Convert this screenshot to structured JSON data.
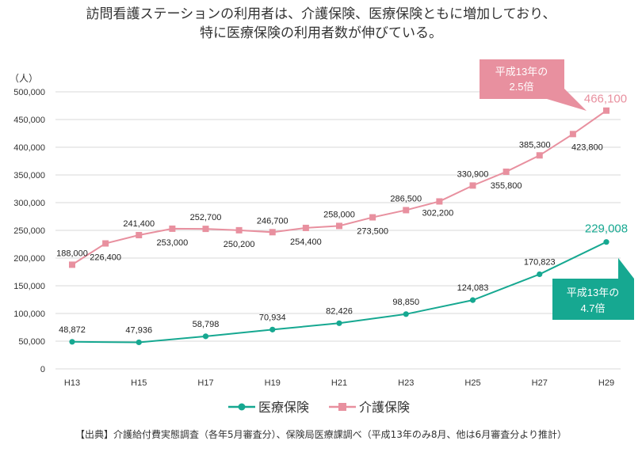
{
  "title": {
    "line1": "訪問看護ステーションの利用者は、介護保険、医療保険ともに増加しており、",
    "line2": "特に医療保険の利用者数が伸びている。"
  },
  "source": "【出典】介護給付費実態調査（各年5月審査分）、保険局医療課調べ（平成13年のみ8月、他は6月審査分より推計）",
  "chart_data": {
    "type": "line",
    "ylabel": "（人）",
    "ylim": [
      0,
      500000
    ],
    "y_ticks": [
      "0",
      "50,000",
      "100,000",
      "150,000",
      "200,000",
      "250,000",
      "300,000",
      "350,000",
      "400,000",
      "450,000",
      "500,000"
    ],
    "y_tick_values": [
      0,
      50000,
      100000,
      150000,
      200000,
      250000,
      300000,
      350000,
      400000,
      450000,
      500000
    ],
    "x": [
      "H13",
      "H14",
      "H15",
      "H16",
      "H17",
      "H18",
      "H19",
      "H20",
      "H21",
      "H22",
      "H23",
      "H24",
      "H25",
      "H26",
      "H27",
      "H28",
      "H29"
    ],
    "x_tick_labels": [
      "H13",
      "",
      "H15",
      "",
      "H17",
      "",
      "H19",
      "",
      "H21",
      "",
      "H23",
      "",
      "H25",
      "",
      "H27",
      "",
      "H29"
    ],
    "grid": true,
    "legend_position": "bottom",
    "series": [
      {
        "name": "医療保険",
        "color": "#16a891",
        "marker": "circle",
        "x": [
          "H13",
          "H15",
          "H17",
          "H19",
          "H21",
          "H23",
          "H25",
          "H27",
          "H29"
        ],
        "values": [
          48872,
          47936,
          58798,
          70934,
          82426,
          98850,
          124083,
          170823,
          229008
        ],
        "labels": [
          "48,872",
          "47,936",
          "58,798",
          "70,934",
          "82,426",
          "98,850",
          "124,083",
          "170,823",
          "229,008"
        ]
      },
      {
        "name": "介護保険",
        "color": "#e8909f",
        "marker": "square",
        "x": [
          "H13",
          "H14",
          "H15",
          "H16",
          "H17",
          "H18",
          "H19",
          "H20",
          "H21",
          "H22",
          "H23",
          "H24",
          "H25",
          "H26",
          "H27",
          "H28",
          "H29"
        ],
        "values": [
          188000,
          226400,
          241400,
          253000,
          252700,
          250200,
          246700,
          254400,
          258000,
          273500,
          286500,
          302200,
          330900,
          355800,
          385300,
          423800,
          466100
        ],
        "labels": [
          "188,000",
          "226,400",
          "241,400",
          "253,000",
          "252,700",
          "250,200",
          "246,700",
          "254,400",
          "258,000",
          "273,500",
          "286,500",
          "302,200",
          "330,900",
          "355,800",
          "385,300",
          "423,800",
          "466,100"
        ]
      }
    ],
    "annotations": [
      {
        "text1": "平成13年の",
        "text2": "2.5倍",
        "series": "介護保険",
        "color": "#e8909f"
      },
      {
        "text1": "平成13年の",
        "text2": "4.7倍",
        "series": "医療保険",
        "color": "#16a891"
      }
    ]
  }
}
